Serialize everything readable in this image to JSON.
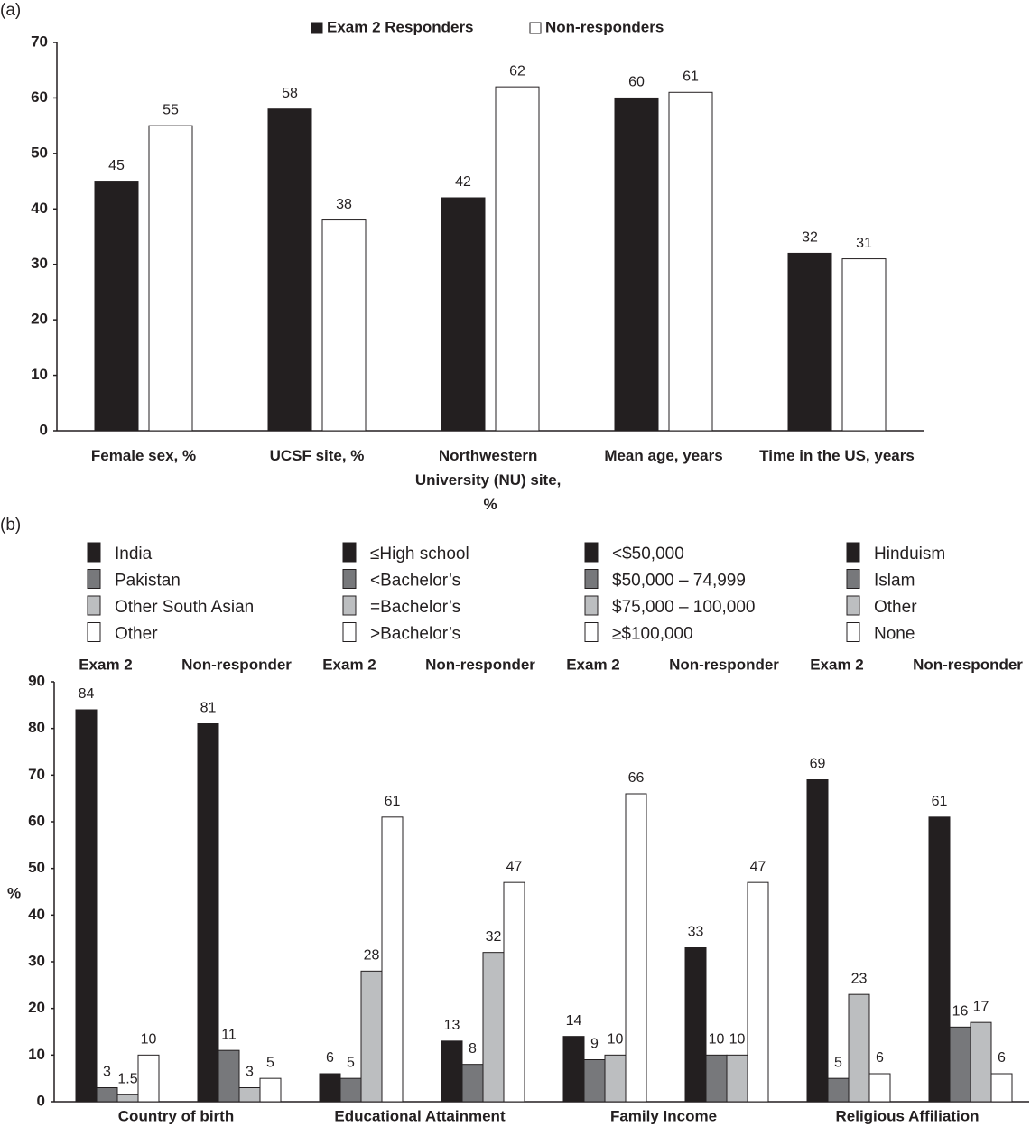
{
  "chart_data": [
    {
      "type": "bar",
      "panel_label": "(a)",
      "categories": [
        "Female sex, %",
        "UCSF site, %",
        "Northwestern University (NU) site, %",
        "Mean age, years",
        "Time in the US, years"
      ],
      "series": [
        {
          "name": "Exam 2 Responders",
          "color": "#231f20",
          "values": [
            45,
            58,
            42,
            60,
            32
          ]
        },
        {
          "name": "Non-responders",
          "color": "#ffffff",
          "values": [
            55,
            38,
            62,
            61,
            31
          ]
        }
      ],
      "ylim": [
        0,
        70
      ],
      "yticks": [
        0,
        10,
        20,
        30,
        40,
        50,
        60,
        70
      ],
      "legend": "top"
    },
    {
      "type": "grouped-bar",
      "panel_label": "(b)",
      "ylabel": "%",
      "subgroups": [
        "Exam 2",
        "Non-responder"
      ],
      "groups": [
        {
          "name": "Country of birth",
          "series": [
            {
              "name": "India",
              "color": "#231f20",
              "values": [
                84,
                81
              ]
            },
            {
              "name": "Pakistan",
              "color": "#77787b",
              "values": [
                3,
                11
              ]
            },
            {
              "name": "Other South Asian",
              "color": "#bcbec0",
              "values": [
                1.5,
                3
              ]
            },
            {
              "name": "Other",
              "color": "#ffffff",
              "values": [
                10,
                5
              ]
            }
          ]
        },
        {
          "name": "Educational Attainment",
          "series": [
            {
              "name": "≤High school",
              "color": "#231f20",
              "values": [
                6,
                13
              ]
            },
            {
              "name": "<Bachelor’s",
              "color": "#77787b",
              "values": [
                5,
                8
              ]
            },
            {
              "name": "=Bachelor’s",
              "color": "#bcbec0",
              "values": [
                28,
                32
              ]
            },
            {
              "name": ">Bachelor’s",
              "color": "#ffffff",
              "values": [
                61,
                47
              ]
            }
          ]
        },
        {
          "name": "Family Income",
          "series": [
            {
              "name": "<$50,000",
              "color": "#231f20",
              "values": [
                14,
                33
              ]
            },
            {
              "name": "$50,000 – 74,999",
              "color": "#77787b",
              "values": [
                9,
                10
              ]
            },
            {
              "name": "$75,000 – 100,000",
              "color": "#bcbec0",
              "values": [
                10,
                10
              ]
            },
            {
              "name": "≥$100,000",
              "color": "#ffffff",
              "values": [
                66,
                47
              ]
            }
          ]
        },
        {
          "name": "Religious Affiliation",
          "series": [
            {
              "name": "Hinduism",
              "color": "#231f20",
              "values": [
                69,
                61
              ]
            },
            {
              "name": "Islam",
              "color": "#77787b",
              "values": [
                5,
                16
              ]
            },
            {
              "name": "Other",
              "color": "#bcbec0",
              "values": [
                23,
                17
              ]
            },
            {
              "name": "None",
              "color": "#ffffff",
              "values": [
                6,
                6
              ]
            }
          ]
        }
      ],
      "ylim": [
        0,
        90
      ],
      "yticks": [
        0,
        10,
        20,
        30,
        40,
        50,
        60,
        70,
        80,
        90
      ]
    }
  ]
}
